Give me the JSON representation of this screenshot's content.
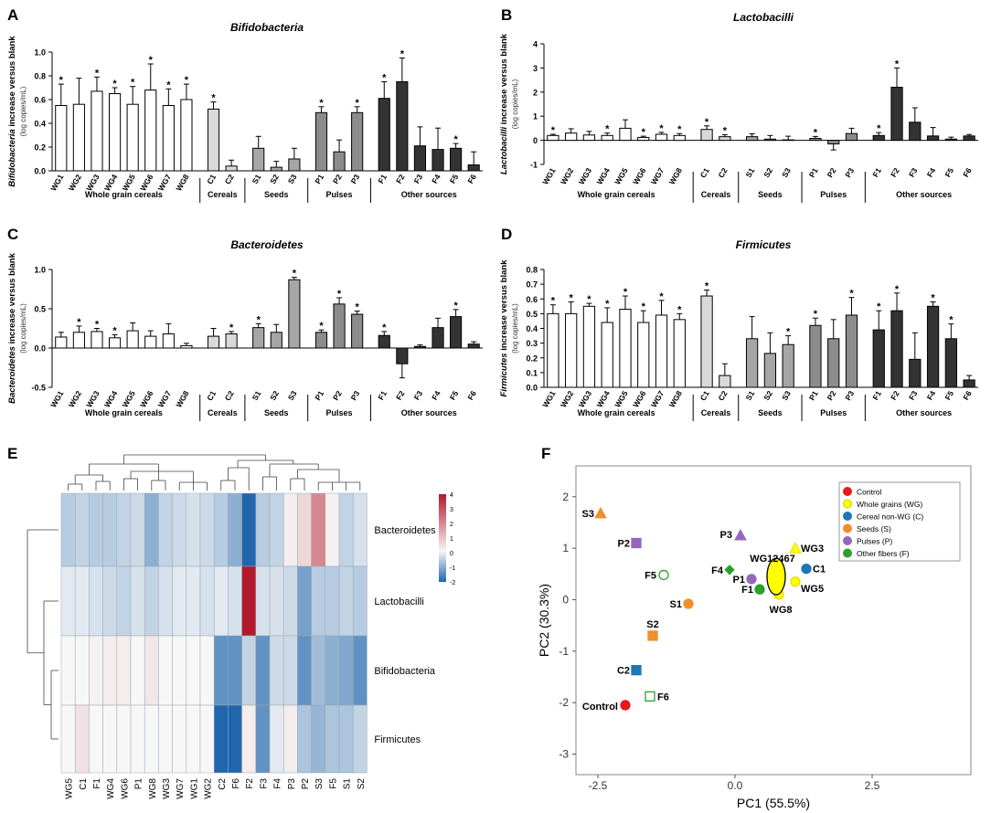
{
  "groups": [
    "Whole grain cereals",
    "Cereals",
    "Seeds",
    "Pulses",
    "Other sources"
  ],
  "bar_panels": [
    {
      "label": "A",
      "title": "Bifidobacteria",
      "ylabel_italic": "Bifidobacteria",
      "ylabel_rest": " increase versus blank",
      "ylabel_unit": "(log copies/mL)",
      "ylim": [
        0,
        1.0
      ],
      "yticks": [
        "0.0",
        "0.2",
        "0.4",
        "0.6",
        "0.8",
        "1.0"
      ],
      "ytick_values": [
        0,
        0.2,
        0.4,
        0.6,
        0.8,
        1.0
      ],
      "categories": [
        "WG1",
        "WG2",
        "WG3",
        "WG4",
        "WG5",
        "WG6",
        "WG7",
        "WG8",
        "C1",
        "C2",
        "S1",
        "S2",
        "S3",
        "P1",
        "P2",
        "P3",
        "F1",
        "F2",
        "F3",
        "F4",
        "F5",
        "F6"
      ],
      "values": [
        0.55,
        0.56,
        0.67,
        0.65,
        0.56,
        0.68,
        0.55,
        0.6,
        0.52,
        0.04,
        0.19,
        0.03,
        0.1,
        0.49,
        0.16,
        0.49,
        0.61,
        0.75,
        0.21,
        0.18,
        0.19,
        0.05
      ],
      "errors": [
        0.18,
        0.22,
        0.12,
        0.05,
        0.15,
        0.22,
        0.14,
        0.13,
        0.06,
        0.05,
        0.1,
        0.05,
        0.09,
        0.05,
        0.1,
        0.05,
        0.14,
        0.2,
        0.16,
        0.18,
        0.04,
        0.11
      ],
      "significant": [
        true,
        false,
        true,
        true,
        true,
        true,
        true,
        true,
        true,
        false,
        false,
        false,
        false,
        true,
        false,
        true,
        true,
        true,
        false,
        false,
        true,
        false
      ]
    },
    {
      "label": "B",
      "title": "Lactobacilli",
      "ylabel_italic": "Lactobacilli",
      "ylabel_rest": " increase versus blank",
      "ylabel_unit": "(log copies/mL)",
      "ylim": [
        -1,
        4
      ],
      "yticks": [
        "-1",
        "0",
        "1",
        "2",
        "3",
        "4"
      ],
      "ytick_values": [
        -1,
        0,
        1,
        2,
        3,
        4
      ],
      "categories": [
        "WG1",
        "WG2",
        "WG3",
        "WG4",
        "WG5",
        "WG6",
        "WG7",
        "WG8",
        "C1",
        "C2",
        "S1",
        "S2",
        "S3",
        "P1",
        "P2",
        "P3",
        "F1",
        "F2",
        "F3",
        "F4",
        "F5",
        "F6"
      ],
      "values": [
        0.2,
        0.3,
        0.22,
        0.2,
        0.5,
        0.12,
        0.25,
        0.2,
        0.45,
        0.15,
        0.15,
        0.05,
        0.02,
        0.08,
        -0.15,
        0.28,
        0.2,
        2.2,
        0.75,
        0.18,
        0.05,
        0.18
      ],
      "errors": [
        0.05,
        0.18,
        0.15,
        0.1,
        0.35,
        0.05,
        0.08,
        0.08,
        0.15,
        0.08,
        0.12,
        0.15,
        0.15,
        0.08,
        0.25,
        0.22,
        0.12,
        0.8,
        0.6,
        0.35,
        0.08,
        0.06
      ],
      "significant": [
        true,
        false,
        false,
        true,
        false,
        true,
        true,
        true,
        true,
        true,
        false,
        false,
        false,
        true,
        false,
        false,
        true,
        true,
        false,
        false,
        false,
        false
      ]
    },
    {
      "label": "C",
      "title": "Bacteroidetes",
      "ylabel_italic": "Bacteroidetes",
      "ylabel_rest": " increase versus blank",
      "ylabel_unit": "(log copies/mL)",
      "ylim": [
        -0.5,
        1.0
      ],
      "yticks": [
        "-0.5",
        "0.0",
        "0.5",
        "1.0"
      ],
      "ytick_values": [
        -0.5,
        0,
        0.5,
        1.0
      ],
      "categories": [
        "WG1",
        "WG2",
        "WG3",
        "WG4",
        "WG5",
        "WG6",
        "WG7",
        "WG8",
        "C1",
        "C2",
        "S1",
        "S2",
        "S3",
        "P1",
        "P2",
        "P3",
        "F1",
        "F2",
        "F3",
        "F4",
        "F5",
        "F6"
      ],
      "values": [
        0.14,
        0.2,
        0.21,
        0.13,
        0.22,
        0.15,
        0.18,
        0.03,
        0.15,
        0.18,
        0.26,
        0.2,
        0.87,
        0.2,
        0.56,
        0.43,
        0.16,
        -0.2,
        0.02,
        0.26,
        0.4,
        0.05
      ],
      "errors": [
        0.06,
        0.08,
        0.04,
        0.04,
        0.1,
        0.07,
        0.13,
        0.03,
        0.1,
        0.03,
        0.05,
        0.1,
        0.03,
        0.03,
        0.08,
        0.04,
        0.05,
        0.18,
        0.02,
        0.12,
        0.09,
        0.03
      ],
      "significant": [
        false,
        true,
        true,
        true,
        false,
        false,
        false,
        false,
        false,
        true,
        true,
        false,
        true,
        true,
        true,
        true,
        true,
        false,
        false,
        false,
        true,
        false
      ]
    },
    {
      "label": "D",
      "title": "Firmicutes",
      "ylabel_italic": "Firmicutes",
      "ylabel_rest": " increase versus blank",
      "ylabel_unit": "(log copies/mL)",
      "ylim": [
        0,
        0.8
      ],
      "yticks": [
        "0.0",
        "0.1",
        "0.2",
        "0.3",
        "0.4",
        "0.5",
        "0.6",
        "0.7",
        "0.8"
      ],
      "ytick_values": [
        0,
        0.1,
        0.2,
        0.3,
        0.4,
        0.5,
        0.6,
        0.7,
        0.8
      ],
      "categories": [
        "WG1",
        "WG2",
        "WG3",
        "WG4",
        "WG5",
        "WG6",
        "WG7",
        "WG8",
        "C1",
        "C2",
        "S1",
        "S2",
        "S3",
        "P1",
        "P2",
        "P3",
        "F1",
        "F2",
        "F3",
        "F4",
        "F5",
        "F6"
      ],
      "values": [
        0.5,
        0.5,
        0.55,
        0.44,
        0.53,
        0.44,
        0.49,
        0.46,
        0.62,
        0.08,
        0.33,
        0.23,
        0.29,
        0.42,
        0.33,
        0.49,
        0.39,
        0.52,
        0.19,
        0.55,
        0.33,
        0.05
      ],
      "errors": [
        0.06,
        0.08,
        0.02,
        0.1,
        0.09,
        0.08,
        0.1,
        0.04,
        0.04,
        0.08,
        0.15,
        0.14,
        0.06,
        0.05,
        0.13,
        0.12,
        0.13,
        0.12,
        0.18,
        0.03,
        0.1,
        0.03
      ],
      "significant": [
        true,
        true,
        true,
        true,
        true,
        true,
        true,
        true,
        true,
        false,
        false,
        false,
        true,
        true,
        false,
        true,
        true,
        true,
        false,
        true,
        true,
        false
      ]
    }
  ],
  "heatmap": {
    "label": "E",
    "rows": [
      "Bacteroidetes",
      "Lactobacilli",
      "Bifidobacteria",
      "Firmicutes"
    ],
    "columns": [
      "WG5",
      "C1",
      "F1",
      "WG4",
      "WG6",
      "P1",
      "WG8",
      "WG3",
      "WG7",
      "WG1",
      "WG2",
      "C2",
      "F6",
      "F2",
      "F3",
      "F4",
      "P3",
      "P2",
      "S3",
      "F5",
      "S1",
      "S2"
    ],
    "values": [
      [
        -0.6,
        -0.5,
        -0.6,
        -0.6,
        -0.5,
        -0.4,
        -1.0,
        -0.5,
        -0.4,
        -0.3,
        -0.4,
        -0.6,
        -1.0,
        -2.0,
        -0.6,
        -0.5,
        0.2,
        0.6,
        2.0,
        0.1,
        -0.5,
        -0.3
      ],
      [
        -0.2,
        -0.2,
        -0.3,
        -0.4,
        -0.5,
        -0.3,
        -0.5,
        -0.3,
        -0.2,
        -0.2,
        -0.3,
        -0.2,
        -0.3,
        4.0,
        -0.3,
        -0.3,
        -0.4,
        -1.2,
        -0.6,
        -0.6,
        -0.5,
        -0.6
      ],
      [
        0.0,
        0.0,
        0.1,
        0.2,
        0.2,
        0.0,
        0.3,
        0.0,
        0.0,
        0.0,
        0.0,
        -1.4,
        -1.4,
        -0.5,
        -1.4,
        -0.4,
        -0.4,
        -1.4,
        -0.8,
        -1.0,
        -1.1,
        -1.4
      ],
      [
        0.0,
        0.4,
        0.0,
        0.0,
        0.0,
        0.0,
        0.0,
        0.0,
        0.0,
        0.0,
        0.0,
        -2.0,
        -2.0,
        0.2,
        -1.4,
        -0.2,
        0.2,
        -0.7,
        -0.9,
        -0.7,
        -0.7,
        -0.5
      ]
    ],
    "scale_ticks": [
      "4",
      "3",
      "2",
      "1",
      "0",
      "-1",
      "-2"
    ],
    "color_low": "#2166ac",
    "color_mid": "#f7f7f7",
    "color_high": "#b2182b"
  },
  "chart_data": [
    {
      "type": "bar",
      "title": "Bifidobacteria",
      "panel": "A"
    },
    {
      "type": "bar",
      "title": "Lactobacilli",
      "panel": "B"
    },
    {
      "type": "bar",
      "title": "Bacteroidetes",
      "panel": "C"
    },
    {
      "type": "bar",
      "title": "Firmicutes",
      "panel": "D"
    },
    {
      "type": "heatmap",
      "panel": "E"
    },
    {
      "type": "scatter",
      "panel": "F",
      "xlabel": "PC1 (55.5%)",
      "ylabel": "PC2 (30.3%)",
      "xlim": [
        -2.9,
        4.3
      ],
      "ylim": [
        -3.4,
        2.6
      ],
      "xticks": [
        "-2.5",
        "0.0",
        "2.5"
      ],
      "xtick_values": [
        -2.5,
        0,
        2.5
      ],
      "yticks": [
        "2",
        "1",
        "0",
        "-1",
        "-2",
        "-3"
      ],
      "ytick_values": [
        2,
        1,
        0,
        -1,
        -2,
        -3
      ],
      "points": [
        {
          "label": "Control",
          "x": -2.0,
          "y": -2.05,
          "color": "#e41a1c",
          "shape": "circle",
          "filled": true
        },
        {
          "label": "S3",
          "x": -2.45,
          "y": 1.68,
          "color": "#f28e2b",
          "shape": "triangle",
          "filled": true
        },
        {
          "label": "P2",
          "x": -1.8,
          "y": 1.1,
          "color": "#9467bd",
          "shape": "square",
          "filled": true
        },
        {
          "label": "F5",
          "x": -1.3,
          "y": 0.48,
          "color": "#2ca02c",
          "shape": "circle",
          "filled": false
        },
        {
          "label": "S1",
          "x": -0.85,
          "y": -0.08,
          "color": "#f28e2b",
          "shape": "circle",
          "filled": true
        },
        {
          "label": "S2",
          "x": -1.5,
          "y": -0.7,
          "color": "#f28e2b",
          "shape": "square",
          "filled": true
        },
        {
          "label": "C2",
          "x": -1.8,
          "y": -1.37,
          "color": "#1f77b4",
          "shape": "square",
          "filled": true
        },
        {
          "label": "F6",
          "x": -1.55,
          "y": -1.88,
          "color": "#2ca02c",
          "shape": "square",
          "filled": false
        },
        {
          "label": "F4",
          "x": -0.1,
          "y": 0.58,
          "color": "#2ca02c",
          "shape": "diamond",
          "filled": true
        },
        {
          "label": "P3",
          "x": 0.1,
          "y": 1.25,
          "color": "#9467bd",
          "shape": "triangle",
          "filled": true
        },
        {
          "label": "P1",
          "x": 0.3,
          "y": 0.4,
          "color": "#9467bd",
          "shape": "circle",
          "filled": true
        },
        {
          "label": "F1",
          "x": 0.45,
          "y": 0.2,
          "color": "#2ca02c",
          "shape": "circle",
          "filled": true
        },
        {
          "label": "WG3",
          "x": 1.1,
          "y": 1.0,
          "color": "#ffff00",
          "shape": "triangle",
          "filled": true
        },
        {
          "label": "C1",
          "x": 1.3,
          "y": 0.6,
          "color": "#1f77b4",
          "shape": "circle",
          "filled": true
        },
        {
          "label": "WG5",
          "x": 1.1,
          "y": 0.35,
          "color": "#ffff00",
          "shape": "circle",
          "filled": true
        },
        {
          "label": "WG8",
          "x": 0.8,
          "y": 0.1,
          "color": "#ffff00",
          "shape": "circle",
          "filled": true
        },
        {
          "label": "WG12467",
          "x": 0.75,
          "y": 0.45,
          "color": "#ffff00",
          "shape": "cluster",
          "filled": true
        }
      ],
      "legend": [
        {
          "text": "Control",
          "color": "#e41a1c"
        },
        {
          "text": "Whole grains (WG)",
          "color": "#ffff00"
        },
        {
          "text": "Cereal non-WG (C)",
          "color": "#1f77b4"
        },
        {
          "text": "Seeds (S)",
          "color": "#f28e2b"
        },
        {
          "text": "Pulses (P)",
          "color": "#9467bd"
        },
        {
          "text": "Other fibers (F)",
          "color": "#2ca02c"
        }
      ]
    }
  ]
}
